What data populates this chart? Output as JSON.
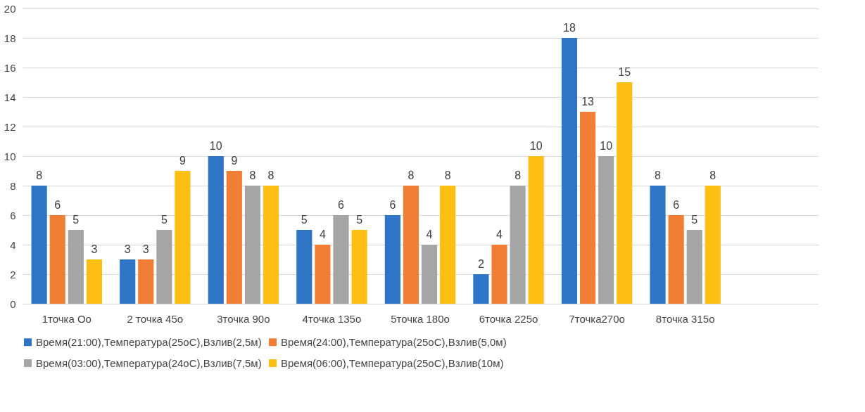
{
  "chart_data": {
    "type": "bar",
    "categories": [
      "1точка Оо",
      "2 точка 45о",
      "3точка 90о",
      "4точка 135о",
      "5точка 180о",
      "6точка 225о",
      "7точка270о",
      "8точка 315о",
      null
    ],
    "series": [
      {
        "name": "Время(21:00),Температура(25оС),Взлив(2,5м)",
        "color": "#2e75c6",
        "values": [
          8,
          3,
          10,
          5,
          6,
          2,
          18,
          8,
          null
        ]
      },
      {
        "name": "Время(24:00),Температура(25оС),Взлив(5,0м)",
        "color": "#f07f35",
        "values": [
          6,
          3,
          9,
          4,
          8,
          4,
          13,
          6,
          null
        ]
      },
      {
        "name": "Время(03:00),Температура(24оС),Взлив(7,5м)",
        "color": "#a5a5a5",
        "values": [
          5,
          5,
          8,
          6,
          4,
          8,
          10,
          5,
          null
        ]
      },
      {
        "name": "Время(06:00),Температура(25оС),Взлив(10м)",
        "color": "#fdbf14",
        "values": [
          3,
          9,
          8,
          5,
          8,
          10,
          15,
          8,
          null
        ]
      }
    ],
    "ylim": [
      0,
      20
    ],
    "yticks": [
      0,
      2,
      4,
      6,
      8,
      10,
      12,
      14,
      16,
      18,
      20
    ],
    "grid": "y",
    "legend": "bottom",
    "data_labels": true
  }
}
